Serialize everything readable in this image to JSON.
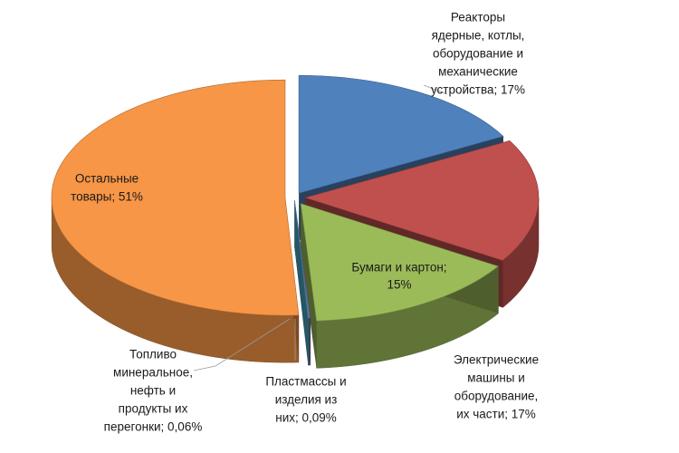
{
  "chart_data": {
    "type": "pie",
    "title": "",
    "categories": [
      "Реакторы ядерные, котлы, оборудование и механические устройства",
      "Электрические машины и оборудование, их части",
      "Бумаги и картон",
      "Пластмассы и изделия из них",
      "Топливо минеральное, нефть и продукты их перегонки",
      "Остальные товары"
    ],
    "values": [
      17,
      17,
      15,
      0.09,
      0.06,
      51
    ],
    "value_labels": [
      "17%",
      "17%",
      "15%",
      "0,09%",
      "0,06%",
      "51%"
    ],
    "colors": [
      "#4f81bd",
      "#c0504d",
      "#9bbb59",
      "#8064a2",
      "#4bacc6",
      "#f79646"
    ],
    "labels": [
      [
        "Реакторы",
        "ядерные, котлы,",
        "оборудование и",
        "механические",
        "устройства; 17%"
      ],
      [
        "Электрические",
        "машины и",
        "оборудование,",
        "их части; 17%"
      ],
      [
        "Бумаги и картон;",
        "15%"
      ],
      [
        "Пластмассы и",
        "изделия из",
        "них; 0,09%"
      ],
      [
        "Топливо",
        "минеральное,",
        "нефть и",
        "продукты их",
        "перегонки; 0,06%"
      ],
      [
        "Остальные",
        "товары; 51%"
      ]
    ],
    "legend": "none",
    "style": "3d-exploded"
  }
}
